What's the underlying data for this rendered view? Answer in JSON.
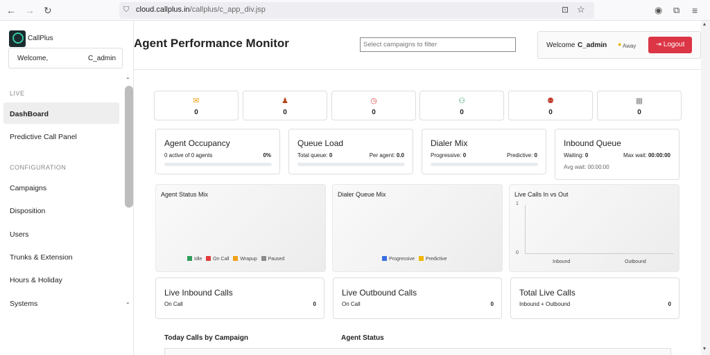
{
  "browser": {
    "url_host": "cloud.callplus.in",
    "url_path": "/callplus/c_app_div.jsp"
  },
  "sidebar": {
    "brand": "CallPlus",
    "welcome_label": "Welcome,",
    "welcome_user": "C_admin",
    "section_live": "LIVE",
    "section_config": "CONFIGURATION",
    "items": [
      "DashBoard",
      "Predictive Call Panel",
      "Campaigns",
      "Disposition",
      "Users",
      "Trunks & Extension",
      "Hours & Holiday",
      "Systems"
    ]
  },
  "header": {
    "title": "Agent Performance Monitor",
    "filter_placeholder": "Select campaigns to filter",
    "welcome": "Welcome",
    "user": "C_admin",
    "status": "Away",
    "logout": "Logout"
  },
  "stats": [
    {
      "icon": "phone-icon",
      "value": "0"
    },
    {
      "icon": "agent-icon",
      "value": "0"
    },
    {
      "icon": "clock-icon",
      "value": "0"
    },
    {
      "icon": "team-icon",
      "value": "0"
    },
    {
      "icon": "support-icon",
      "value": "0"
    },
    {
      "icon": "building-icon",
      "value": "0"
    }
  ],
  "kpis": {
    "occupancy": {
      "title": "Agent Occupancy",
      "left": "0 active of 0 agents",
      "right": "0%",
      "level_percent": 0
    },
    "queue": {
      "title": "Queue Load",
      "left_label": "Total queue:",
      "left_val": "0",
      "right_label": "Per agent:",
      "right_val": "0.0"
    },
    "dialer": {
      "title": "Dialer Mix",
      "left_label": "Progressive:",
      "left_val": "0",
      "right_label": "Predictive:",
      "right_val": "0"
    },
    "inbound": {
      "title": "Inbound Queue",
      "waiting_label": "Waiting:",
      "waiting_val": "0",
      "maxwait_label": "Max wait:",
      "maxwait_val": "00:00:00",
      "avgwait": "Avg wait: 00:00:00"
    }
  },
  "charts": {
    "agent_status": {
      "title": "Agent Status Mix",
      "legend": [
        "Idle",
        "On Call",
        "Wrapup",
        "Paused"
      ],
      "colors": [
        "#2e9e5b",
        "#e03c3c",
        "#f0a018",
        "#8a8a8a"
      ]
    },
    "dialer_queue": {
      "title": "Dialer Queue Mix",
      "legend": [
        "Progressive",
        "Predictive"
      ],
      "colors": [
        "#3b6fe0",
        "#f0b800"
      ]
    },
    "live_calls": {
      "title": "Live Calls In vs Out",
      "y_max": "1",
      "y_min": "0",
      "categories": [
        "Inbound",
        "Outbound"
      ]
    }
  },
  "live": [
    {
      "title": "Live Inbound Calls",
      "sub": "On Call",
      "value": "0"
    },
    {
      "title": "Live Outbound Calls",
      "sub": "On Call",
      "value": "0"
    },
    {
      "title": "Total Live Calls",
      "sub": "Inbound + Outbound",
      "value": "0"
    }
  ],
  "bottom": {
    "today": "Today Calls by Campaign",
    "agent_status": "Agent Status"
  }
}
